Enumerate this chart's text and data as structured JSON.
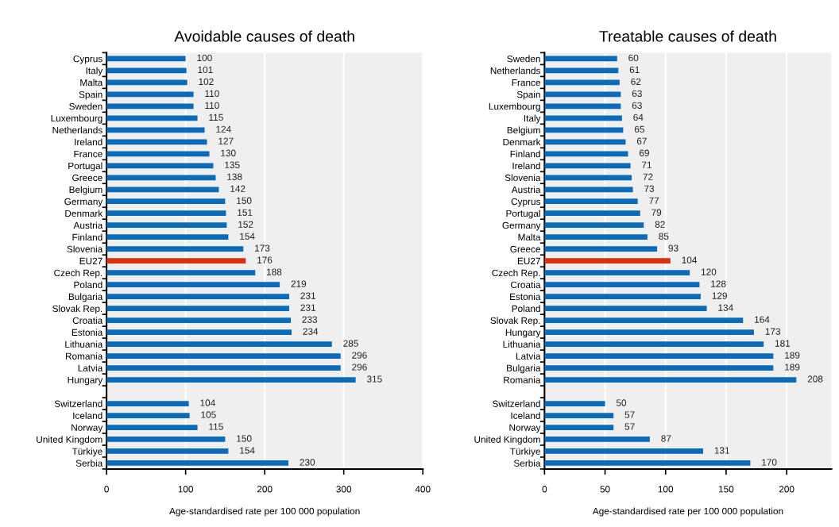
{
  "chart_data": [
    {
      "type": "bar",
      "orientation": "horizontal",
      "title": "Avoidable causes of death",
      "xlabel": "Age-standardised rate per 100 000 population",
      "categories": [
        "Cyprus",
        "Italy",
        "Malta",
        "Spain",
        "Sweden",
        "Luxembourg",
        "Netherlands",
        "Ireland",
        "France",
        "Portugal",
        "Greece",
        "Belgium",
        "Germany",
        "Denmark",
        "Austria",
        "Finland",
        "Slovenia",
        "EU27",
        "Czech Rep.",
        "Poland",
        "Bulgaria",
        "Slovak Rep.",
        "Croatia",
        "Estonia",
        "Lithuania",
        "Romania",
        "Latvia",
        "Hungary",
        null,
        "Switzerland",
        "Iceland",
        "Norway",
        "United Kingdom",
        "Türkiye",
        "Serbia"
      ],
      "values": [
        100,
        101,
        102,
        110,
        110,
        115,
        124,
        127,
        130,
        135,
        138,
        142,
        150,
        151,
        152,
        154,
        173,
        176,
        188,
        219,
        231,
        231,
        233,
        234,
        285,
        296,
        296,
        315,
        null,
        104,
        105,
        115,
        150,
        154,
        230
      ],
      "colors": [
        "#0b6bb8",
        "#0b6bb8",
        "#0b6bb8",
        "#0b6bb8",
        "#0b6bb8",
        "#0b6bb8",
        "#0b6bb8",
        "#0b6bb8",
        "#0b6bb8",
        "#0b6bb8",
        "#0b6bb8",
        "#0b6bb8",
        "#0b6bb8",
        "#0b6bb8",
        "#0b6bb8",
        "#0b6bb8",
        "#0b6bb8",
        "#d9310f",
        "#0b6bb8",
        "#0b6bb8",
        "#0b6bb8",
        "#0b6bb8",
        "#0b6bb8",
        "#0b6bb8",
        "#0b6bb8",
        "#0b6bb8",
        "#0b6bb8",
        "#0b6bb8",
        "#0b6bb8",
        "#0b6bb8",
        "#0b6bb8",
        "#0b6bb8",
        "#0b6bb8",
        "#0b6bb8",
        "#0b6bb8"
      ],
      "xlim": [
        0,
        400
      ],
      "xticks": [
        0,
        100,
        200,
        300,
        400
      ],
      "grid": "x",
      "data_labels": true
    },
    {
      "type": "bar",
      "orientation": "horizontal",
      "title": "Treatable causes of death",
      "xlabel": "Age-standardised rate per 100 000 population",
      "categories": [
        "Sweden",
        "Netherlands",
        "France",
        "Spain",
        "Luxembourg",
        "Italy",
        "Belgium",
        "Denmark",
        "Finland",
        "Ireland",
        "Slovenia",
        "Austria",
        "Cyprus",
        "Portugal",
        "Germany",
        "Malta",
        "Greece",
        "EU27",
        "Czech Rep.",
        "Croatia",
        "Estonia",
        "Poland",
        "Slovak Rep.",
        "Hungary",
        "Lithuania",
        "Latvia",
        "Bulgaria",
        "Romania",
        null,
        "Switzerland",
        "Iceland",
        "Norway",
        "United Kingdom",
        "Türkiye",
        "Serbia"
      ],
      "values": [
        60,
        61,
        62,
        63,
        63,
        64,
        65,
        67,
        69,
        71,
        72,
        73,
        77,
        79,
        82,
        85,
        93,
        104,
        120,
        128,
        129,
        134,
        164,
        173,
        181,
        189,
        189,
        208,
        null,
        50,
        57,
        57,
        87,
        131,
        170
      ],
      "colors": [
        "#0b6bb8",
        "#0b6bb8",
        "#0b6bb8",
        "#0b6bb8",
        "#0b6bb8",
        "#0b6bb8",
        "#0b6bb8",
        "#0b6bb8",
        "#0b6bb8",
        "#0b6bb8",
        "#0b6bb8",
        "#0b6bb8",
        "#0b6bb8",
        "#0b6bb8",
        "#0b6bb8",
        "#0b6bb8",
        "#0b6bb8",
        "#d9310f",
        "#0b6bb8",
        "#0b6bb8",
        "#0b6bb8",
        "#0b6bb8",
        "#0b6bb8",
        "#0b6bb8",
        "#0b6bb8",
        "#0b6bb8",
        "#0b6bb8",
        "#0b6bb8",
        "#0b6bb8",
        "#0b6bb8",
        "#0b6bb8",
        "#0b6bb8",
        "#0b6bb8",
        "#0b6bb8",
        "#0b6bb8"
      ],
      "xlim": [
        0,
        237
      ],
      "xticks": [
        0,
        50,
        100,
        150,
        200
      ],
      "grid": "x",
      "data_labels": true
    }
  ]
}
